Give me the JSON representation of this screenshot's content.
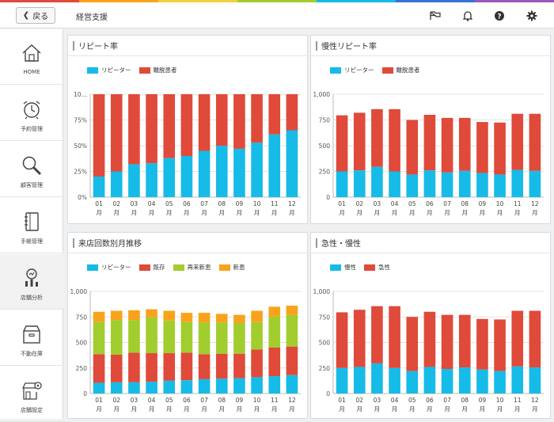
{
  "header": {
    "back_label": "戻る",
    "title": "経営支援",
    "icons": [
      "flag-icon",
      "bell-icon",
      "help-icon",
      "gear-icon"
    ]
  },
  "colors": {
    "repeater": "#16bbe8",
    "dropout": "#e04a3a",
    "existing": "#e04a3a",
    "returning_new": "#a2cd2e",
    "new": "#f9a31c",
    "chronic": "#16bbe8",
    "acute": "#e04a3a",
    "rainbow": [
      "#e04a3a",
      "#f9a31c",
      "#f4d03f",
      "#a2cd2e",
      "#16bbe8",
      "#3a6fd8",
      "#9b59b6"
    ]
  },
  "sidebar": {
    "items": [
      {
        "label": "HOME",
        "icon": "home-icon"
      },
      {
        "label": "予約管理",
        "icon": "alarm-clock-icon"
      },
      {
        "label": "顧客管理",
        "icon": "magnifier-icon"
      },
      {
        "label": "手帳管理",
        "icon": "notebook-icon"
      },
      {
        "label": "店舗分析",
        "icon": "analysis-icon"
      },
      {
        "label": "不動在庫",
        "icon": "box-icon"
      },
      {
        "label": "店舗設定",
        "icon": "store-settings-icon"
      }
    ]
  },
  "chart_data": [
    {
      "type": "bar",
      "title": "リピート率",
      "stacked": true,
      "categories": [
        "01\n月",
        "02\n月",
        "03\n月",
        "04\n月",
        "05\n月",
        "06\n月",
        "07\n月",
        "08\n月",
        "09\n月",
        "10\n月",
        "11\n月",
        "12\n月"
      ],
      "series": [
        {
          "name": "リピーター",
          "values": [
            20,
            25,
            32,
            33,
            38,
            40,
            45,
            50,
            47,
            53,
            61,
            65
          ]
        },
        {
          "name": "離脱患者",
          "values": [
            80,
            75,
            68,
            67,
            62,
            60,
            55,
            50,
            53,
            47,
            39,
            35
          ]
        }
      ],
      "ylim": [
        0,
        100
      ],
      "yticks": [
        "0%",
        "25%",
        "50%",
        "75%",
        "10…"
      ],
      "grid": true,
      "legend": "top-left"
    },
    {
      "type": "bar",
      "title": "慢性リピート率",
      "stacked": true,
      "categories": [
        "01\n月",
        "02\n月",
        "03\n月",
        "04\n月",
        "05\n月",
        "06\n月",
        "07\n月",
        "08\n月",
        "09\n月",
        "10\n月",
        "11\n月",
        "12\n月"
      ],
      "series": [
        {
          "name": "リピーター",
          "values": [
            250,
            260,
            295,
            250,
            220,
            260,
            240,
            255,
            235,
            220,
            265,
            255
          ]
        },
        {
          "name": "離脱患者",
          "values": [
            545,
            560,
            560,
            605,
            530,
            540,
            530,
            515,
            495,
            505,
            545,
            555
          ]
        }
      ],
      "ylim": [
        0,
        1000
      ],
      "yticks": [
        "0",
        "250",
        "500",
        "750",
        "1,000"
      ],
      "grid": true,
      "legend": "top-left"
    },
    {
      "type": "bar",
      "title": "来店回数別月推移",
      "stacked": true,
      "categories": [
        "01\n月",
        "02\n月",
        "03\n月",
        "04\n月",
        "05\n月",
        "06\n月",
        "07\n月",
        "08\n月",
        "09\n月",
        "10\n月",
        "11\n月",
        "12\n月"
      ],
      "series": [
        {
          "name": "リピーター",
          "values": [
            105,
            110,
            110,
            115,
            125,
            130,
            140,
            145,
            150,
            160,
            170,
            180
          ]
        },
        {
          "name": "既存",
          "values": [
            280,
            270,
            290,
            280,
            270,
            270,
            245,
            245,
            240,
            270,
            280,
            280
          ]
        },
        {
          "name": "再来新患",
          "values": [
            315,
            340,
            320,
            350,
            320,
            300,
            310,
            305,
            300,
            270,
            305,
            310
          ]
        },
        {
          "name": "新患",
          "values": [
            100,
            90,
            95,
            80,
            95,
            90,
            95,
            85,
            80,
            110,
            95,
            90
          ]
        }
      ],
      "ylim": [
        0,
        1000
      ],
      "yticks": [
        "0",
        "250",
        "500",
        "750",
        "1,000"
      ],
      "grid": true,
      "legend": "top-left"
    },
    {
      "type": "bar",
      "title": "急性・慢性",
      "stacked": true,
      "categories": [
        "01\n月",
        "02\n月",
        "03\n月",
        "04\n月",
        "05\n月",
        "06\n月",
        "07\n月",
        "08\n月",
        "09\n月",
        "10\n月",
        "11\n月",
        "12\n月"
      ],
      "series": [
        {
          "name": "慢性",
          "values": [
            250,
            260,
            295,
            250,
            220,
            260,
            240,
            255,
            235,
            220,
            265,
            255
          ]
        },
        {
          "name": "急性",
          "values": [
            545,
            560,
            560,
            605,
            530,
            540,
            530,
            515,
            495,
            505,
            545,
            555
          ]
        }
      ],
      "ylim": [
        0,
        1000
      ],
      "yticks": [
        "0",
        "250",
        "500",
        "750",
        "1,000"
      ],
      "grid": true,
      "legend": "top-left"
    }
  ]
}
